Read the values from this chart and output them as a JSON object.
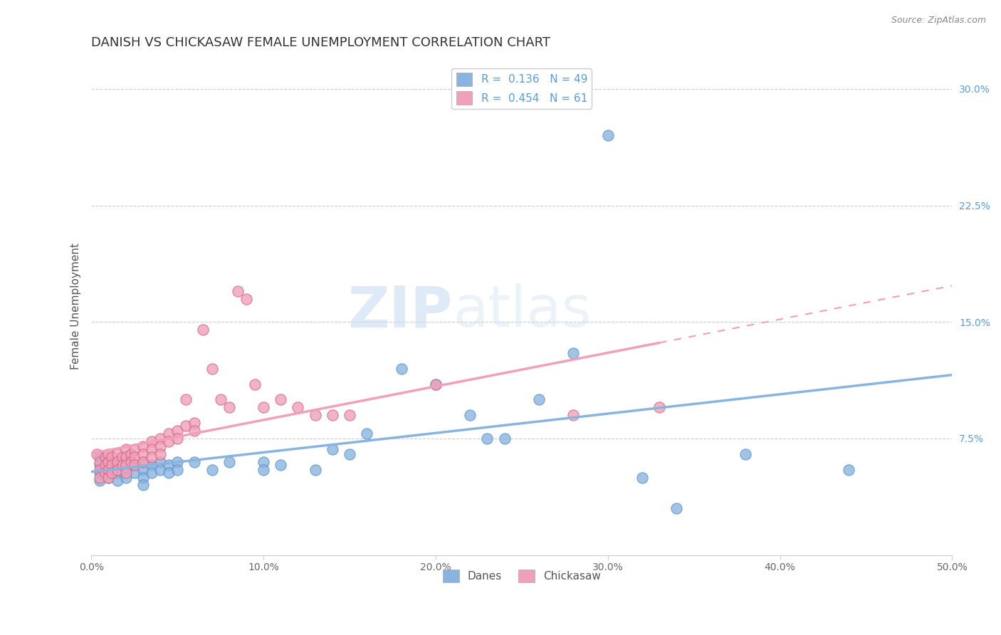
{
  "title": "DANISH VS CHICKASAW FEMALE UNEMPLOYMENT CORRELATION CHART",
  "source": "Source: ZipAtlas.com",
  "ylabel": "Female Unemployment",
  "xlim": [
    0.0,
    0.5
  ],
  "ylim": [
    0.0,
    0.32
  ],
  "xticks": [
    0.0,
    0.1,
    0.2,
    0.3,
    0.4,
    0.5
  ],
  "xticklabels": [
    "0.0%",
    "10.0%",
    "20.0%",
    "30.0%",
    "40.0%",
    "50.0%"
  ],
  "yticks_right": [
    0.075,
    0.15,
    0.225,
    0.3
  ],
  "yticks_right_labels": [
    "7.5%",
    "15.0%",
    "22.5%",
    "30.0%"
  ],
  "danes_R": 0.136,
  "danes_N": 49,
  "chickasaw_R": 0.454,
  "chickasaw_N": 61,
  "danes_color": "#89b4e0",
  "danes_edge_color": "#5a8fc4",
  "chickasaw_color": "#f0a0b8",
  "chickasaw_edge_color": "#d06080",
  "danes_scatter": [
    [
      0.005,
      0.063
    ],
    [
      0.005,
      0.058
    ],
    [
      0.005,
      0.053
    ],
    [
      0.005,
      0.048
    ],
    [
      0.01,
      0.06
    ],
    [
      0.01,
      0.055
    ],
    [
      0.01,
      0.05
    ],
    [
      0.015,
      0.058
    ],
    [
      0.015,
      0.053
    ],
    [
      0.015,
      0.048
    ],
    [
      0.02,
      0.06
    ],
    [
      0.02,
      0.055
    ],
    [
      0.02,
      0.05
    ],
    [
      0.025,
      0.058
    ],
    [
      0.025,
      0.053
    ],
    [
      0.03,
      0.06
    ],
    [
      0.03,
      0.055
    ],
    [
      0.03,
      0.05
    ],
    [
      0.03,
      0.045
    ],
    [
      0.035,
      0.058
    ],
    [
      0.035,
      0.053
    ],
    [
      0.04,
      0.06
    ],
    [
      0.04,
      0.055
    ],
    [
      0.045,
      0.058
    ],
    [
      0.045,
      0.053
    ],
    [
      0.05,
      0.06
    ],
    [
      0.05,
      0.055
    ],
    [
      0.06,
      0.06
    ],
    [
      0.07,
      0.055
    ],
    [
      0.08,
      0.06
    ],
    [
      0.1,
      0.06
    ],
    [
      0.1,
      0.055
    ],
    [
      0.11,
      0.058
    ],
    [
      0.13,
      0.055
    ],
    [
      0.14,
      0.068
    ],
    [
      0.15,
      0.065
    ],
    [
      0.16,
      0.078
    ],
    [
      0.18,
      0.12
    ],
    [
      0.2,
      0.11
    ],
    [
      0.22,
      0.09
    ],
    [
      0.23,
      0.075
    ],
    [
      0.24,
      0.075
    ],
    [
      0.26,
      0.1
    ],
    [
      0.28,
      0.13
    ],
    [
      0.3,
      0.27
    ],
    [
      0.32,
      0.05
    ],
    [
      0.34,
      0.03
    ],
    [
      0.38,
      0.065
    ],
    [
      0.44,
      0.055
    ]
  ],
  "chickasaw_scatter": [
    [
      0.003,
      0.065
    ],
    [
      0.005,
      0.06
    ],
    [
      0.005,
      0.055
    ],
    [
      0.005,
      0.05
    ],
    [
      0.008,
      0.063
    ],
    [
      0.008,
      0.058
    ],
    [
      0.008,
      0.053
    ],
    [
      0.01,
      0.065
    ],
    [
      0.01,
      0.06
    ],
    [
      0.01,
      0.055
    ],
    [
      0.01,
      0.05
    ],
    [
      0.012,
      0.063
    ],
    [
      0.012,
      0.058
    ],
    [
      0.012,
      0.053
    ],
    [
      0.015,
      0.065
    ],
    [
      0.015,
      0.06
    ],
    [
      0.015,
      0.055
    ],
    [
      0.018,
      0.063
    ],
    [
      0.018,
      0.058
    ],
    [
      0.02,
      0.068
    ],
    [
      0.02,
      0.063
    ],
    [
      0.02,
      0.058
    ],
    [
      0.02,
      0.053
    ],
    [
      0.023,
      0.065
    ],
    [
      0.023,
      0.06
    ],
    [
      0.025,
      0.068
    ],
    [
      0.025,
      0.063
    ],
    [
      0.025,
      0.058
    ],
    [
      0.03,
      0.07
    ],
    [
      0.03,
      0.065
    ],
    [
      0.03,
      0.06
    ],
    [
      0.035,
      0.073
    ],
    [
      0.035,
      0.068
    ],
    [
      0.035,
      0.063
    ],
    [
      0.04,
      0.075
    ],
    [
      0.04,
      0.07
    ],
    [
      0.04,
      0.065
    ],
    [
      0.045,
      0.078
    ],
    [
      0.045,
      0.073
    ],
    [
      0.05,
      0.08
    ],
    [
      0.05,
      0.075
    ],
    [
      0.055,
      0.083
    ],
    [
      0.055,
      0.1
    ],
    [
      0.06,
      0.085
    ],
    [
      0.06,
      0.08
    ],
    [
      0.065,
      0.145
    ],
    [
      0.07,
      0.12
    ],
    [
      0.075,
      0.1
    ],
    [
      0.08,
      0.095
    ],
    [
      0.085,
      0.17
    ],
    [
      0.09,
      0.165
    ],
    [
      0.095,
      0.11
    ],
    [
      0.1,
      0.095
    ],
    [
      0.11,
      0.1
    ],
    [
      0.12,
      0.095
    ],
    [
      0.13,
      0.09
    ],
    [
      0.14,
      0.09
    ],
    [
      0.15,
      0.09
    ],
    [
      0.2,
      0.11
    ],
    [
      0.28,
      0.09
    ],
    [
      0.33,
      0.095
    ]
  ],
  "watermark_zip": "ZIP",
  "watermark_atlas": "atlas",
  "background_color": "#ffffff",
  "grid_color": "#cccccc",
  "title_fontsize": 13,
  "axis_label_fontsize": 11,
  "tick_fontsize": 10,
  "legend_fontsize": 11
}
